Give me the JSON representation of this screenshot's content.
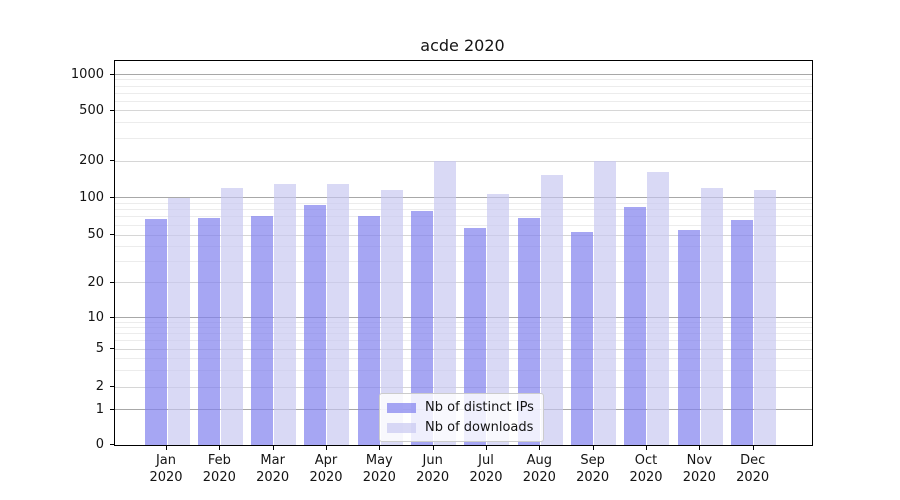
{
  "title": "acde 2020",
  "chart_data": {
    "type": "bar",
    "title": "acde 2020",
    "categories": [
      "Jan 2020",
      "Feb 2020",
      "Mar 2020",
      "Apr 2020",
      "May 2020",
      "Jun 2020",
      "Jul 2020",
      "Aug 2020",
      "Sep 2020",
      "Oct 2020",
      "Nov 2020",
      "Dec 2020"
    ],
    "series": [
      {
        "name": "Nb of distinct IPs",
        "color": "#8080ee",
        "alpha": 0.7,
        "values": [
          67,
          68,
          71,
          87,
          71,
          78,
          57,
          68,
          53,
          84,
          55,
          66
        ]
      },
      {
        "name": "Nb of downloads",
        "color": "#c6c6f0",
        "alpha": 0.67,
        "values": [
          100,
          120,
          130,
          129,
          115,
          200,
          108,
          153,
          199,
          163,
          121,
          115
        ]
      }
    ],
    "xlabel": "",
    "ylabel": "",
    "yscale": "log-with-zero",
    "yticks": [
      0,
      1,
      2,
      5,
      10,
      20,
      50,
      100,
      200,
      500,
      1000
    ],
    "ylim": [
      0,
      1200
    ],
    "grid": "major-and-minor-horizontal",
    "legend_position": "lower-center-inside"
  }
}
